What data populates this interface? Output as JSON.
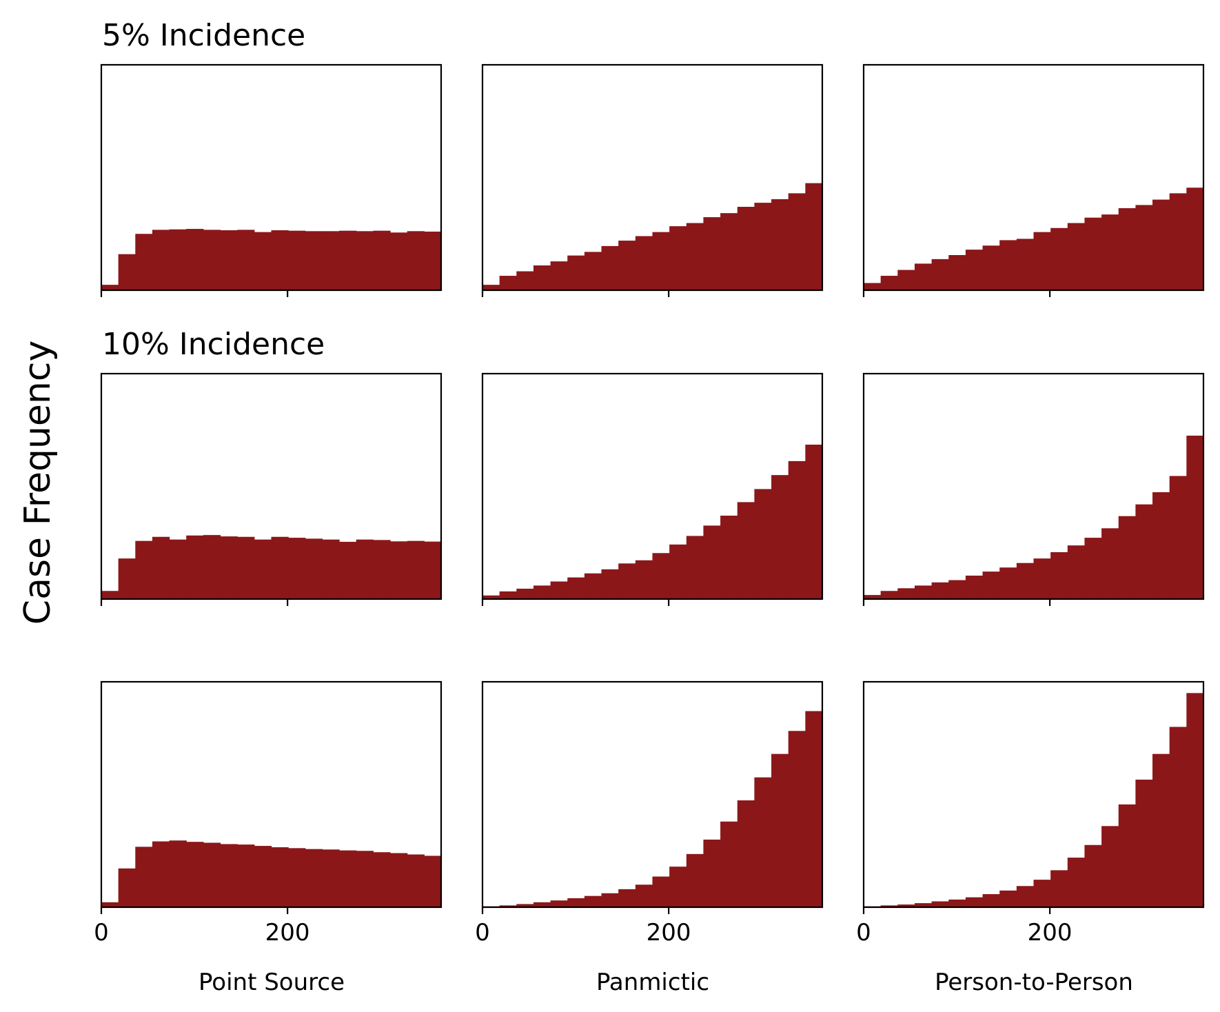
{
  "figure": {
    "ylabel": "Case Frequency",
    "bar_color": "#8b1719",
    "row_titles": [
      "5% Incidence",
      "10% Incidence",
      ""
    ],
    "column_labels": [
      "Point Source",
      "Panmictic",
      "Person-to-Person"
    ],
    "xtick_labels": [
      "0",
      "200"
    ]
  },
  "chart_data": {
    "type": "bar",
    "layout": "3x3 grid of histograms",
    "ylabel": "Case Frequency",
    "x_axis": {
      "xlim": [
        0,
        365
      ],
      "xticks": [
        0,
        200
      ],
      "shared_across_columns": true
    },
    "y_axis": {
      "ticks_shown": false,
      "ylim_relative": [
        0,
        1
      ]
    },
    "bin_edges": [
      0,
      18.25,
      36.5,
      54.75,
      73,
      91.25,
      109.5,
      127.75,
      146,
      164.25,
      182.5,
      200.75,
      219,
      237.25,
      255.5,
      273.75,
      292,
      310.25,
      328.5,
      346.75,
      365
    ],
    "grid": false,
    "panels": [
      {
        "row_title": "5% Incidence",
        "column": "Point Source",
        "values": [
          0.024,
          0.16,
          0.25,
          0.268,
          0.27,
          0.272,
          0.268,
          0.266,
          0.268,
          0.258,
          0.266,
          0.264,
          0.262,
          0.262,
          0.264,
          0.262,
          0.264,
          0.256,
          0.262,
          0.26
        ]
      },
      {
        "row_title": "5% Incidence",
        "column": "Panmictic",
        "values": [
          0.024,
          0.064,
          0.084,
          0.11,
          0.128,
          0.154,
          0.17,
          0.196,
          0.22,
          0.24,
          0.258,
          0.284,
          0.298,
          0.324,
          0.342,
          0.37,
          0.388,
          0.404,
          0.43,
          0.475
        ]
      },
      {
        "row_title": "5% Incidence",
        "column": "Person-to-Person",
        "values": [
          0.032,
          0.064,
          0.09,
          0.118,
          0.138,
          0.156,
          0.18,
          0.198,
          0.222,
          0.228,
          0.258,
          0.276,
          0.298,
          0.322,
          0.336,
          0.364,
          0.378,
          0.402,
          0.43,
          0.455
        ]
      },
      {
        "row_title": "10% Incidence",
        "column": "Point Source",
        "values": [
          0.036,
          0.18,
          0.258,
          0.276,
          0.264,
          0.282,
          0.284,
          0.278,
          0.276,
          0.264,
          0.276,
          0.272,
          0.268,
          0.264,
          0.254,
          0.264,
          0.262,
          0.256,
          0.258,
          0.255
        ]
      },
      {
        "row_title": "10% Incidence",
        "column": "Panmictic",
        "values": [
          0.016,
          0.034,
          0.046,
          0.06,
          0.078,
          0.096,
          0.114,
          0.132,
          0.158,
          0.172,
          0.204,
          0.242,
          0.28,
          0.326,
          0.37,
          0.43,
          0.488,
          0.55,
          0.612,
          0.685
        ]
      },
      {
        "row_title": "10% Incidence",
        "column": "Person-to-Person",
        "values": [
          0.018,
          0.036,
          0.048,
          0.06,
          0.074,
          0.084,
          0.104,
          0.122,
          0.14,
          0.16,
          0.18,
          0.208,
          0.238,
          0.272,
          0.314,
          0.368,
          0.42,
          0.474,
          0.546,
          0.725
        ]
      },
      {
        "row_title": "",
        "column": "Point Source",
        "values": [
          0.022,
          0.172,
          0.268,
          0.292,
          0.296,
          0.29,
          0.286,
          0.28,
          0.278,
          0.272,
          0.266,
          0.262,
          0.258,
          0.256,
          0.252,
          0.25,
          0.244,
          0.24,
          0.234,
          0.228
        ]
      },
      {
        "row_title": "",
        "column": "Panmictic",
        "values": [
          0.004,
          0.008,
          0.014,
          0.022,
          0.03,
          0.04,
          0.05,
          0.062,
          0.08,
          0.1,
          0.136,
          0.18,
          0.236,
          0.3,
          0.38,
          0.474,
          0.576,
          0.68,
          0.782,
          0.87
        ]
      },
      {
        "row_title": "",
        "column": "Person-to-Person",
        "values": [
          0.004,
          0.008,
          0.012,
          0.018,
          0.026,
          0.034,
          0.044,
          0.058,
          0.074,
          0.094,
          0.122,
          0.164,
          0.22,
          0.276,
          0.36,
          0.456,
          0.566,
          0.68,
          0.8,
          0.95
        ]
      }
    ]
  }
}
